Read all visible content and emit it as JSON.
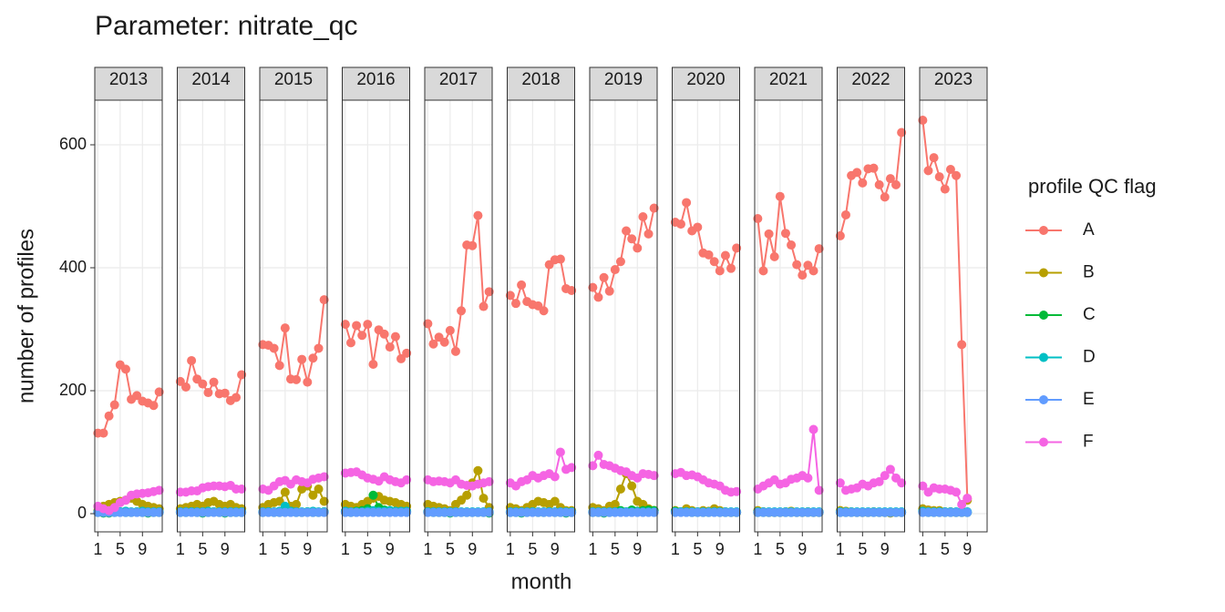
{
  "chart_data": {
    "type": "line",
    "title": "Parameter:  nitrate_qc",
    "x_label": "month",
    "y_label": "number of profiles",
    "legend_title": "profile QC flag",
    "xlim": [
      0.45,
      12.55
    ],
    "xticks": [
      1,
      5,
      9
    ],
    "ylim": [
      -29.6,
      672.6
    ],
    "yticks": [
      0,
      200,
      400,
      600
    ],
    "grid": true,
    "panels": [
      {
        "label": "2013",
        "x": [
          1,
          2,
          3,
          4,
          5,
          6,
          7,
          8,
          9,
          10,
          11,
          12
        ]
      },
      {
        "label": "2014",
        "x": [
          1,
          2,
          3,
          4,
          5,
          6,
          7,
          8,
          9,
          10,
          11,
          12
        ]
      },
      {
        "label": "2015",
        "x": [
          1,
          2,
          3,
          4,
          5,
          6,
          7,
          8,
          9,
          10,
          11,
          12
        ]
      },
      {
        "label": "2016",
        "x": [
          1,
          2,
          3,
          4,
          5,
          6,
          7,
          8,
          9,
          10,
          11,
          12
        ]
      },
      {
        "label": "2017",
        "x": [
          1,
          2,
          3,
          4,
          5,
          6,
          7,
          8,
          9,
          10,
          11,
          12
        ]
      },
      {
        "label": "2018",
        "x": [
          1,
          2,
          3,
          4,
          5,
          6,
          7,
          8,
          9,
          10,
          11,
          12
        ]
      },
      {
        "label": "2019",
        "x": [
          1,
          2,
          3,
          4,
          5,
          6,
          7,
          8,
          9,
          10,
          11,
          12
        ]
      },
      {
        "label": "2020",
        "x": [
          1,
          2,
          3,
          4,
          5,
          6,
          7,
          8,
          9,
          10,
          11,
          12
        ]
      },
      {
        "label": "2021",
        "x": [
          1,
          2,
          3,
          4,
          5,
          6,
          7,
          8,
          9,
          10,
          11,
          12
        ]
      },
      {
        "label": "2022",
        "x": [
          1,
          2,
          3,
          4,
          5,
          6,
          7,
          8,
          9,
          10,
          11,
          12
        ]
      },
      {
        "label": "2023",
        "x": [
          1,
          2,
          3,
          4,
          5,
          6,
          7,
          8,
          9
        ]
      }
    ],
    "series": [
      {
        "name": "A",
        "color": "#F8766D",
        "values": [
          [
            131,
            131,
            159,
            177,
            242,
            235,
            186,
            192,
            183,
            180,
            176,
            198
          ],
          [
            215,
            206,
            249,
            219,
            211,
            197,
            214,
            195,
            196,
            184,
            189,
            226
          ],
          [
            275,
            274,
            269,
            241,
            302,
            219,
            218,
            251,
            214,
            253,
            269,
            348
          ],
          [
            308,
            278,
            306,
            290,
            308,
            243,
            299,
            292,
            271,
            288,
            252,
            261
          ],
          [
            309,
            276,
            287,
            279,
            298,
            264,
            330,
            437,
            436,
            485,
            337,
            361
          ],
          [
            355,
            342,
            372,
            345,
            340,
            338,
            330,
            405,
            413,
            414,
            366,
            363
          ],
          [
            368,
            352,
            384,
            362,
            397,
            410,
            460,
            447,
            432,
            483,
            455,
            497
          ],
          [
            474,
            471,
            506,
            460,
            466,
            424,
            421,
            410,
            395,
            420,
            399,
            432
          ],
          [
            480,
            395,
            455,
            418,
            516,
            456,
            437,
            405,
            388,
            404,
            395,
            431
          ],
          [
            452,
            486,
            550,
            555,
            538,
            561,
            562,
            535,
            515,
            545,
            535,
            620
          ],
          [
            640,
            558,
            579,
            548,
            528,
            560,
            550,
            275,
            25
          ]
        ]
      },
      {
        "name": "B",
        "color": "#B79F00",
        "values": [
          [
            5,
            12,
            15,
            18,
            20,
            22,
            25,
            20,
            15,
            12,
            10,
            8
          ],
          [
            8,
            10,
            12,
            15,
            12,
            18,
            20,
            15,
            12,
            15,
            10,
            8
          ],
          [
            10,
            15,
            18,
            20,
            35,
            12,
            15,
            40,
            45,
            30,
            40,
            20
          ],
          [
            15,
            12,
            10,
            15,
            20,
            25,
            28,
            22,
            20,
            18,
            15,
            12
          ],
          [
            15,
            12,
            10,
            8,
            5,
            15,
            22,
            30,
            50,
            70,
            25,
            10
          ],
          [
            10,
            8,
            5,
            10,
            15,
            20,
            18,
            15,
            20,
            10,
            5,
            5
          ],
          [
            10,
            8,
            5,
            12,
            15,
            40,
            65,
            45,
            20,
            15,
            8,
            5
          ],
          [
            5,
            3,
            8,
            5,
            3,
            5,
            4,
            8,
            5,
            3,
            2,
            2
          ],
          [
            5,
            3,
            2,
            2,
            2,
            3,
            4,
            2,
            2,
            3,
            2,
            2
          ],
          [
            5,
            4,
            3,
            2,
            2,
            2,
            3,
            2,
            2,
            1,
            2,
            2
          ],
          [
            8,
            6,
            5,
            5,
            3,
            3,
            2,
            2,
            22
          ]
        ]
      },
      {
        "name": "C",
        "color": "#00BA38",
        "values": [
          [
            2,
            1,
            1,
            2,
            3,
            2,
            2,
            3,
            2,
            1,
            2,
            2
          ],
          [
            2,
            2,
            3,
            2,
            1,
            2,
            3,
            2,
            1,
            2,
            2,
            2
          ],
          [
            2,
            3,
            2,
            2,
            3,
            4,
            2,
            2,
            3,
            2,
            2,
            3
          ],
          [
            3,
            2,
            4,
            5,
            8,
            30,
            10,
            6,
            5,
            4,
            3,
            3
          ],
          [
            3,
            2,
            2,
            2,
            1,
            2,
            2,
            2,
            2,
            2,
            2,
            1
          ],
          [
            2,
            2,
            1,
            2,
            3,
            2,
            2,
            3,
            2,
            2,
            1,
            2
          ],
          [
            2,
            2,
            1,
            2,
            3,
            5,
            3,
            6,
            4,
            5,
            6,
            5
          ],
          [
            4,
            3,
            3,
            2,
            2,
            2,
            2,
            3,
            2,
            2,
            2,
            2
          ],
          [
            2,
            2,
            2,
            2,
            2,
            2,
            2,
            2,
            2,
            2,
            2,
            2
          ],
          [
            2,
            2,
            2,
            2,
            2,
            2,
            2,
            2,
            2,
            2,
            2,
            2
          ],
          [
            3,
            2,
            2,
            2,
            2,
            2,
            2,
            2,
            2
          ]
        ]
      },
      {
        "name": "D",
        "color": "#00BFC4",
        "values": [
          [
            3,
            2,
            2,
            3,
            3,
            4,
            3,
            3,
            4,
            3,
            3,
            3
          ],
          [
            3,
            3,
            3,
            3,
            3,
            4,
            3,
            3,
            3,
            3,
            3,
            3
          ],
          [
            3,
            3,
            3,
            4,
            12,
            4,
            3,
            3,
            3,
            4,
            3,
            3
          ],
          [
            4,
            3,
            3,
            3,
            4,
            5,
            4,
            4,
            5,
            4,
            4,
            4
          ],
          [
            3,
            3,
            3,
            3,
            3,
            3,
            3,
            3,
            3,
            3,
            3,
            3
          ],
          [
            3,
            3,
            3,
            3,
            3,
            3,
            3,
            3,
            3,
            3,
            3,
            3
          ],
          [
            3,
            3,
            3,
            3,
            3,
            3,
            3,
            3,
            3,
            3,
            3,
            3
          ],
          [
            3,
            3,
            3,
            3,
            3,
            3,
            3,
            3,
            3,
            3,
            3,
            3
          ],
          [
            3,
            3,
            3,
            3,
            3,
            3,
            3,
            3,
            3,
            3,
            3,
            3
          ],
          [
            3,
            3,
            3,
            3,
            3,
            3,
            3,
            3,
            3,
            3,
            3,
            3
          ],
          [
            4,
            3,
            3,
            3,
            3,
            3,
            3,
            3,
            3
          ]
        ]
      },
      {
        "name": "E",
        "color": "#619CFF",
        "values": [
          [
            2,
            2,
            2,
            2,
            2,
            2,
            2,
            2,
            2,
            2,
            2,
            2
          ],
          [
            2,
            2,
            2,
            2,
            2,
            2,
            2,
            2,
            2,
            2,
            2,
            2
          ],
          [
            2,
            2,
            2,
            2,
            2,
            2,
            2,
            2,
            2,
            2,
            2,
            2
          ],
          [
            2,
            2,
            2,
            2,
            2,
            2,
            2,
            2,
            2,
            2,
            2,
            2
          ],
          [
            2,
            2,
            2,
            2,
            2,
            2,
            2,
            2,
            2,
            2,
            2,
            2
          ],
          [
            2,
            2,
            2,
            2,
            2,
            2,
            2,
            2,
            2,
            2,
            2,
            2
          ],
          [
            2,
            2,
            2,
            2,
            2,
            2,
            2,
            2,
            2,
            2,
            2,
            2
          ],
          [
            2,
            2,
            2,
            2,
            2,
            2,
            2,
            2,
            2,
            2,
            2,
            2
          ],
          [
            2,
            2,
            2,
            2,
            2,
            2,
            2,
            2,
            2,
            2,
            2,
            2
          ],
          [
            2,
            2,
            2,
            2,
            2,
            2,
            2,
            2,
            2,
            2,
            2,
            2
          ],
          [
            2,
            2,
            2,
            2,
            2,
            2,
            2,
            2,
            2
          ]
        ]
      },
      {
        "name": "F",
        "color": "#F564E3",
        "values": [
          [
            12,
            8,
            5,
            10,
            18,
            22,
            30,
            32,
            33,
            34,
            36,
            38
          ],
          [
            35,
            35,
            37,
            37,
            42,
            44,
            45,
            45,
            44,
            46,
            40,
            40
          ],
          [
            40,
            38,
            45,
            52,
            54,
            48,
            55,
            52,
            50,
            56,
            58,
            60
          ],
          [
            66,
            67,
            68,
            63,
            58,
            56,
            53,
            60,
            55,
            52,
            50,
            55
          ],
          [
            55,
            52,
            53,
            52,
            50,
            55,
            48,
            46,
            45,
            48,
            50,
            52
          ],
          [
            50,
            45,
            52,
            55,
            62,
            58,
            62,
            65,
            60,
            100,
            72,
            75
          ],
          [
            78,
            95,
            80,
            78,
            74,
            70,
            68,
            62,
            58,
            65,
            64,
            62
          ],
          [
            65,
            67,
            62,
            63,
            60,
            55,
            50,
            48,
            45,
            38,
            35,
            36
          ],
          [
            40,
            45,
            50,
            55,
            48,
            50,
            56,
            58,
            62,
            58,
            137,
            38
          ],
          [
            50,
            38,
            40,
            42,
            48,
            45,
            50,
            52,
            62,
            72,
            58,
            50
          ],
          [
            45,
            35,
            42,
            40,
            40,
            38,
            35,
            15,
            25
          ]
        ]
      }
    ]
  }
}
